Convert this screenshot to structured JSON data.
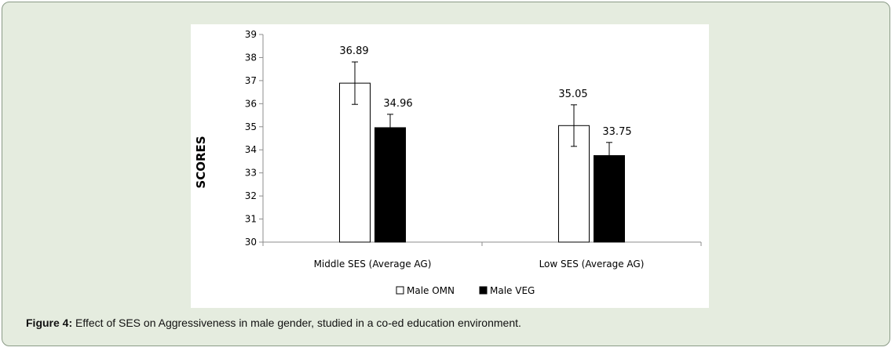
{
  "chart_data": {
    "type": "bar",
    "ylabel": "SCORES",
    "ylim": [
      30,
      39
    ],
    "yticks": [
      "30",
      "31",
      "32",
      "33",
      "34",
      "35",
      "36",
      "37",
      "38",
      "39"
    ],
    "categories": [
      "Middle SES (Average AG)",
      "Low SES (Average AG)"
    ],
    "series": [
      {
        "name": "Male OMN",
        "values": [
          36.89,
          35.05
        ],
        "labels": [
          "36.89",
          "35.05"
        ],
        "error": [
          0.92,
          0.9
        ],
        "fill": "#ffffff"
      },
      {
        "name": "Male VEG",
        "values": [
          34.96,
          33.75
        ],
        "labels": [
          "34.96",
          "33.75"
        ],
        "error": [
          0.58,
          0.57
        ],
        "fill": "#000000"
      }
    ],
    "legend_position": "bottom",
    "grid": false
  },
  "caption": {
    "label": "Figure 4:",
    "text": " Effect of SES on Aggressiveness in male gender, studied in a co-ed education environment."
  },
  "colors": {
    "frame_bg": "#e5ecdf",
    "frame_border": "#8a9a86",
    "axis": "#8c8c8c"
  }
}
